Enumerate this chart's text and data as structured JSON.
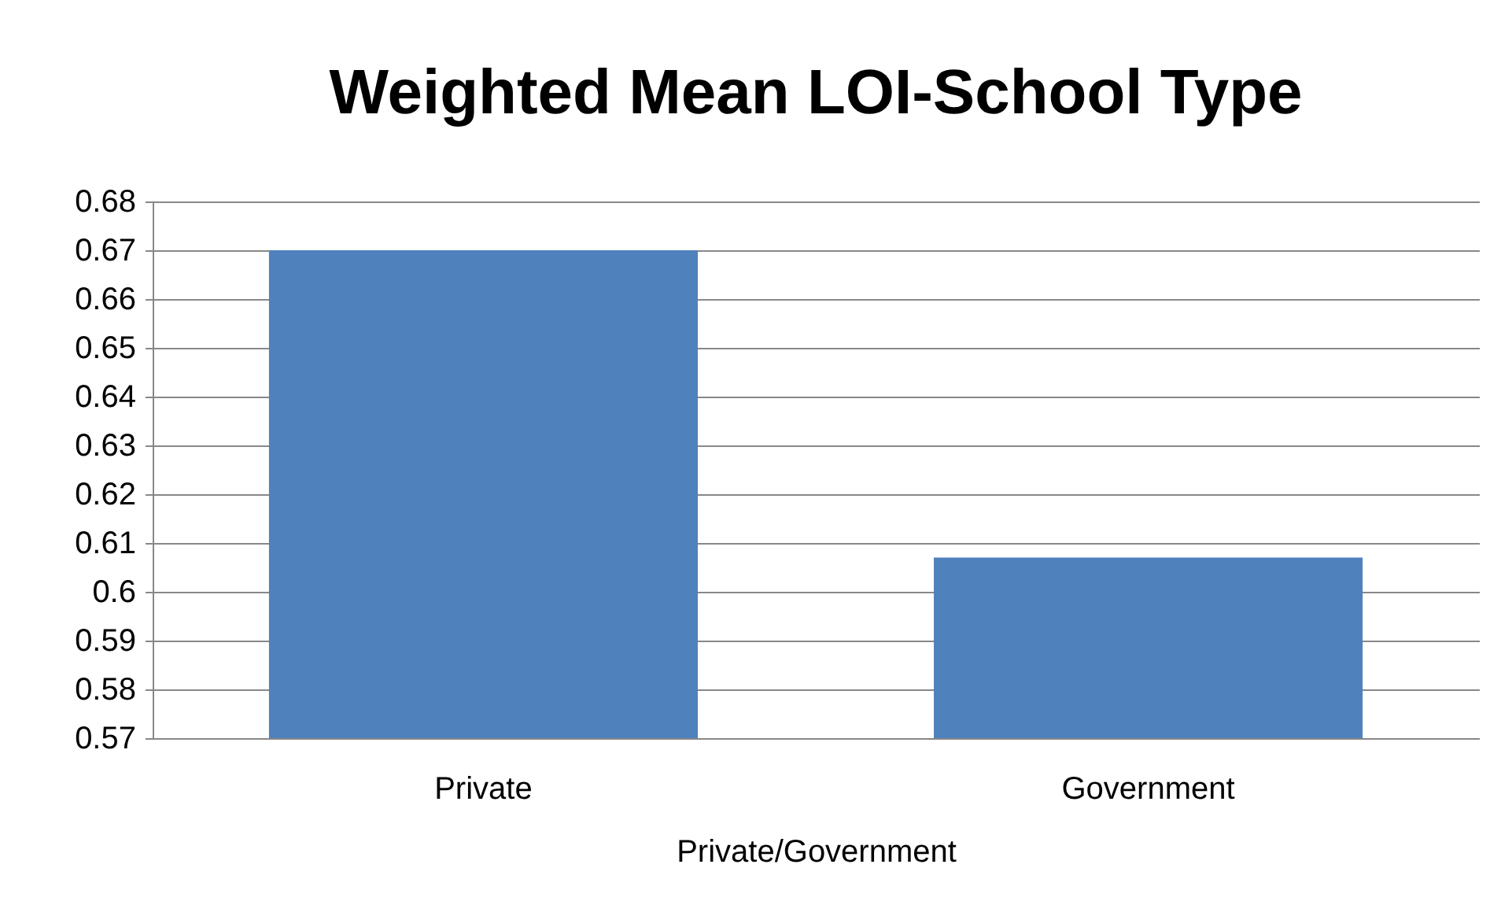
{
  "chart_data": {
    "type": "bar",
    "title": "Weighted Mean LOI-School Type",
    "xlabel": "Private/Government",
    "categories": [
      "Private",
      "Government"
    ],
    "values": [
      0.67,
      0.607
    ],
    "color": "#4f81bd",
    "ylim": [
      0.57,
      0.68
    ],
    "yticks": [
      0.57,
      0.58,
      0.59,
      0.6,
      0.61,
      0.62,
      0.63,
      0.64,
      0.65,
      0.66,
      0.67,
      0.68
    ],
    "grid": "y"
  }
}
